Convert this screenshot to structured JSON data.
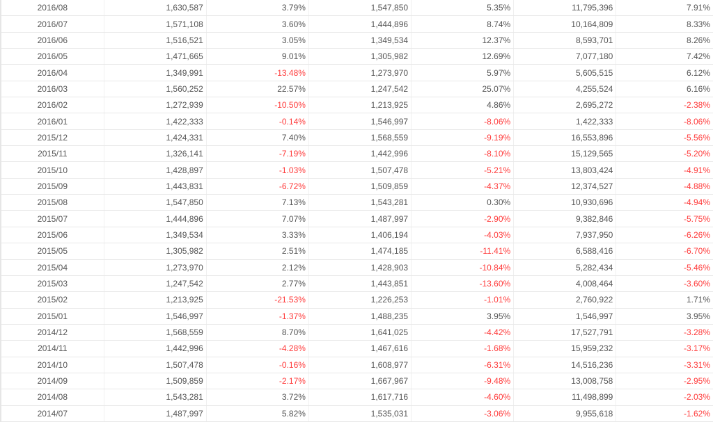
{
  "colors": {
    "text": "#555555",
    "negative": "#ff3b3b",
    "grid": "#e8e8e8"
  },
  "rows": [
    [
      "2016/08",
      "1,630,587",
      "3.79%",
      "1,547,850",
      "5.35%",
      "11,795,396",
      "7.91%"
    ],
    [
      "2016/07",
      "1,571,108",
      "3.60%",
      "1,444,896",
      "8.74%",
      "10,164,809",
      "8.33%"
    ],
    [
      "2016/06",
      "1,516,521",
      "3.05%",
      "1,349,534",
      "12.37%",
      "8,593,701",
      "8.26%"
    ],
    [
      "2016/05",
      "1,471,665",
      "9.01%",
      "1,305,982",
      "12.69%",
      "7,077,180",
      "7.42%"
    ],
    [
      "2016/04",
      "1,349,991",
      "-13.48%",
      "1,273,970",
      "5.97%",
      "5,605,515",
      "6.12%"
    ],
    [
      "2016/03",
      "1,560,252",
      "22.57%",
      "1,247,542",
      "25.07%",
      "4,255,524",
      "6.16%"
    ],
    [
      "2016/02",
      "1,272,939",
      "-10.50%",
      "1,213,925",
      "4.86%",
      "2,695,272",
      "-2.38%"
    ],
    [
      "2016/01",
      "1,422,333",
      "-0.14%",
      "1,546,997",
      "-8.06%",
      "1,422,333",
      "-8.06%"
    ],
    [
      "2015/12",
      "1,424,331",
      "7.40%",
      "1,568,559",
      "-9.19%",
      "16,553,896",
      "-5.56%"
    ],
    [
      "2015/11",
      "1,326,141",
      "-7.19%",
      "1,442,996",
      "-8.10%",
      "15,129,565",
      "-5.20%"
    ],
    [
      "2015/10",
      "1,428,897",
      "-1.03%",
      "1,507,478",
      "-5.21%",
      "13,803,424",
      "-4.91%"
    ],
    [
      "2015/09",
      "1,443,831",
      "-6.72%",
      "1,509,859",
      "-4.37%",
      "12,374,527",
      "-4.88%"
    ],
    [
      "2015/08",
      "1,547,850",
      "7.13%",
      "1,543,281",
      "0.30%",
      "10,930,696",
      "-4.94%"
    ],
    [
      "2015/07",
      "1,444,896",
      "7.07%",
      "1,487,997",
      "-2.90%",
      "9,382,846",
      "-5.75%"
    ],
    [
      "2015/06",
      "1,349,534",
      "3.33%",
      "1,406,194",
      "-4.03%",
      "7,937,950",
      "-6.26%"
    ],
    [
      "2015/05",
      "1,305,982",
      "2.51%",
      "1,474,185",
      "-11.41%",
      "6,588,416",
      "-6.70%"
    ],
    [
      "2015/04",
      "1,273,970",
      "2.12%",
      "1,428,903",
      "-10.84%",
      "5,282,434",
      "-5.46%"
    ],
    [
      "2015/03",
      "1,247,542",
      "2.77%",
      "1,443,851",
      "-13.60%",
      "4,008,464",
      "-3.60%"
    ],
    [
      "2015/02",
      "1,213,925",
      "-21.53%",
      "1,226,253",
      "-1.01%",
      "2,760,922",
      "1.71%"
    ],
    [
      "2015/01",
      "1,546,997",
      "-1.37%",
      "1,488,235",
      "3.95%",
      "1,546,997",
      "3.95%"
    ],
    [
      "2014/12",
      "1,568,559",
      "8.70%",
      "1,641,025",
      "-4.42%",
      "17,527,791",
      "-3.28%"
    ],
    [
      "2014/11",
      "1,442,996",
      "-4.28%",
      "1,467,616",
      "-1.68%",
      "15,959,232",
      "-3.17%"
    ],
    [
      "2014/10",
      "1,507,478",
      "-0.16%",
      "1,608,977",
      "-6.31%",
      "14,516,236",
      "-3.31%"
    ],
    [
      "2014/09",
      "1,509,859",
      "-2.17%",
      "1,667,967",
      "-9.48%",
      "13,008,758",
      "-2.95%"
    ],
    [
      "2014/08",
      "1,543,281",
      "3.72%",
      "1,617,716",
      "-4.60%",
      "11,498,899",
      "-2.03%"
    ],
    [
      "2014/07",
      "1,487,997",
      "5.82%",
      "1,535,031",
      "-3.06%",
      "9,955,618",
      "-1.62%"
    ]
  ]
}
